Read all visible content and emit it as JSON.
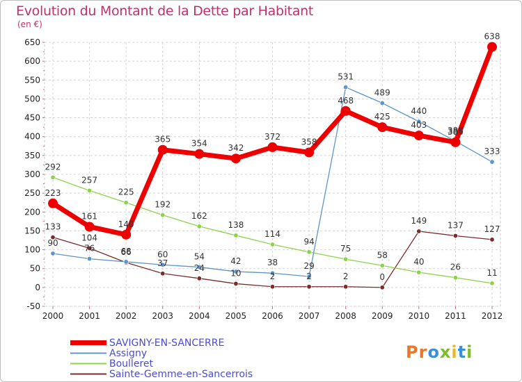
{
  "title": "Evolution du Montant de la Dette par Habitant",
  "unit": "(en €)",
  "logo": {
    "letters": [
      "P",
      "r",
      "o",
      "x",
      "i",
      "t",
      "i"
    ],
    "colors": [
      "#e8762b",
      "#e8762b",
      "#3a8fd9",
      "#7dbb2a",
      "#e8b52a",
      "#3a8fd9",
      "#7dbb2a"
    ]
  },
  "chart_data": {
    "type": "line",
    "x": [
      "2000",
      "2001",
      "2002",
      "2003",
      "2004",
      "2005",
      "2006",
      "2007",
      "2008",
      "2009",
      "2010",
      "2011",
      "2012"
    ],
    "yticks": [
      "650",
      "600",
      "550",
      "500",
      "450",
      "400",
      "350",
      "300",
      "250",
      "200",
      "150",
      "100",
      "50",
      "0",
      "-50"
    ],
    "ylim": [
      -50,
      650
    ],
    "grid": true,
    "legend_position": "bottom-left",
    "series": [
      {
        "name": "SAVIGNY-EN-SANCERRE",
        "color": "#ee0000",
        "values": [
          223,
          161,
          140,
          365,
          354,
          342,
          372,
          358,
          468,
          425,
          403,
          385,
          638
        ],
        "labels": [
          "223",
          "161",
          "140",
          "365",
          "354",
          "342",
          "372",
          "358",
          "468",
          "425",
          "403",
          "385",
          "638"
        ]
      },
      {
        "name": "Assigny",
        "color": "#5d95c8",
        "values": [
          90,
          76,
          68,
          60,
          54,
          42,
          38,
          29,
          531,
          489,
          440,
          388,
          333
        ],
        "labels": [
          "90",
          "76",
          "68",
          "60",
          "54",
          "42",
          "38",
          "29",
          "531",
          "489",
          "440",
          "388",
          "333"
        ]
      },
      {
        "name": "Boulleret",
        "color": "#8cd348",
        "values": [
          292,
          257,
          225,
          192,
          162,
          138,
          114,
          94,
          75,
          58,
          40,
          26,
          11
        ],
        "labels": [
          "292",
          "257",
          "225",
          "192",
          "162",
          "138",
          "114",
          "94",
          "75",
          "58",
          "40",
          "26",
          "11"
        ]
      },
      {
        "name": "Sainte-Gemme-en-Sancerrois",
        "color": "#7a2b2b",
        "values": [
          133,
          104,
          66,
          37,
          24,
          10,
          2,
          2,
          2,
          0,
          149,
          137,
          127
        ],
        "labels": [
          "133",
          "104",
          "66",
          "37",
          "24",
          "10",
          "2",
          "2",
          "2",
          "0",
          "149",
          "137",
          "127"
        ]
      }
    ]
  }
}
